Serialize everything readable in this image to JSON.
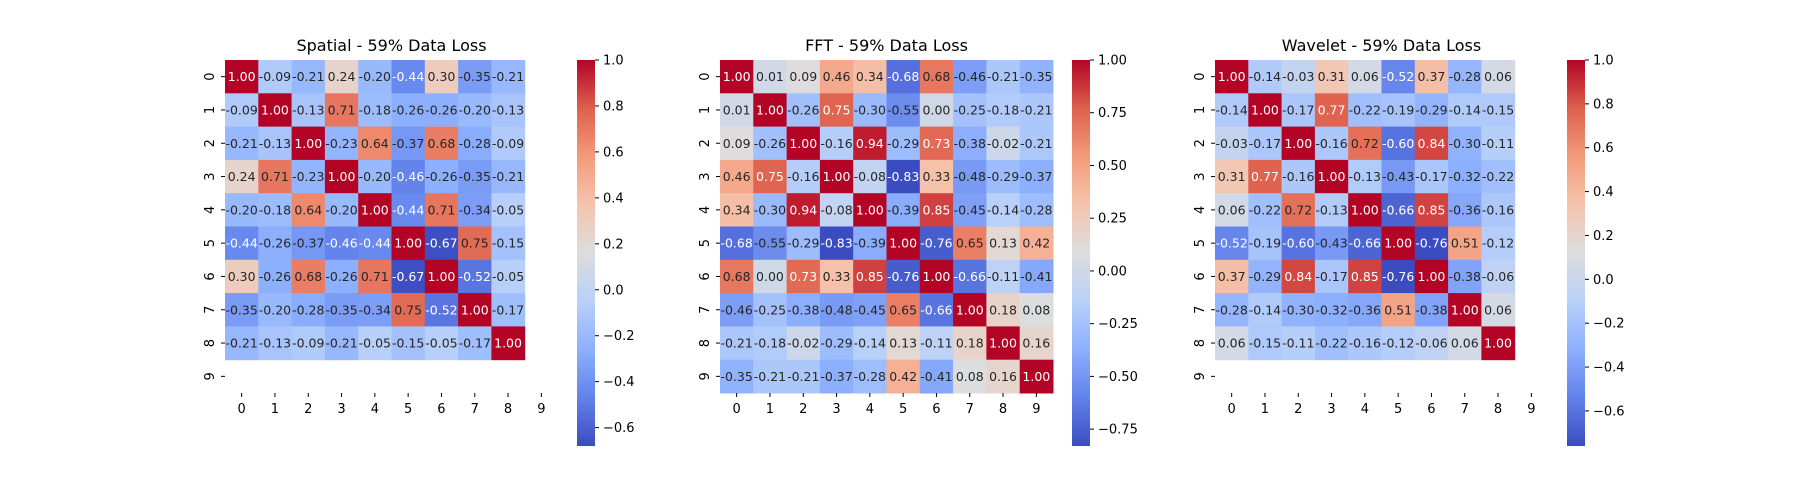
{
  "figure": {
    "background": "#ffffff",
    "colormap": "coolwarm"
  },
  "chart_data": [
    {
      "type": "heatmap",
      "title": "Spatial - 59% Data Loss",
      "x_tick_labels": [
        "0",
        "1",
        "2",
        "3",
        "4",
        "5",
        "6",
        "7",
        "8",
        "9"
      ],
      "y_tick_labels": [
        "0",
        "1",
        "2",
        "3",
        "4",
        "5",
        "6",
        "7",
        "8",
        "9"
      ],
      "vmin": -0.68,
      "vmax": 1.0,
      "colorbar_ticks": [
        1.0,
        0.8,
        0.6,
        0.4,
        0.2,
        0.0,
        -0.2,
        -0.4,
        -0.6
      ],
      "colorbar_tick_labels": [
        "1.0",
        "0.8",
        "0.6",
        "0.4",
        "0.2",
        "0.0",
        "−0.2",
        "−0.4",
        "−0.6"
      ],
      "values": [
        [
          1.0,
          -0.09,
          -0.21,
          0.24,
          -0.2,
          -0.44,
          0.3,
          -0.35,
          -0.21,
          null
        ],
        [
          -0.09,
          1.0,
          -0.13,
          0.71,
          -0.18,
          -0.26,
          -0.26,
          -0.2,
          -0.13,
          null
        ],
        [
          -0.21,
          -0.13,
          1.0,
          -0.23,
          0.64,
          -0.37,
          0.68,
          -0.28,
          -0.09,
          null
        ],
        [
          0.24,
          0.71,
          -0.23,
          1.0,
          -0.2,
          -0.46,
          -0.26,
          -0.35,
          -0.21,
          null
        ],
        [
          -0.2,
          -0.18,
          0.64,
          -0.2,
          1.0,
          -0.44,
          0.71,
          -0.34,
          -0.05,
          null
        ],
        [
          -0.44,
          -0.26,
          -0.37,
          -0.46,
          -0.44,
          1.0,
          -0.67,
          0.75,
          -0.15,
          null
        ],
        [
          0.3,
          -0.26,
          0.68,
          -0.26,
          0.71,
          -0.67,
          1.0,
          -0.52,
          -0.05,
          null
        ],
        [
          -0.35,
          -0.2,
          -0.28,
          -0.35,
          -0.34,
          0.75,
          -0.52,
          1.0,
          -0.17,
          null
        ],
        [
          -0.21,
          -0.13,
          -0.09,
          -0.21,
          -0.05,
          -0.15,
          -0.05,
          -0.17,
          1.0,
          null
        ],
        [
          null,
          null,
          null,
          null,
          null,
          null,
          null,
          null,
          null,
          null
        ]
      ]
    },
    {
      "type": "heatmap",
      "title": "FFT - 59% Data Loss",
      "x_tick_labels": [
        "0",
        "1",
        "2",
        "3",
        "4",
        "5",
        "6",
        "7",
        "8",
        "9"
      ],
      "y_tick_labels": [
        "0",
        "1",
        "2",
        "3",
        "4",
        "5",
        "6",
        "7",
        "8",
        "9"
      ],
      "vmin": -0.83,
      "vmax": 1.0,
      "colorbar_ticks": [
        1.0,
        0.75,
        0.5,
        0.25,
        0.0,
        -0.25,
        -0.5,
        -0.75
      ],
      "colorbar_tick_labels": [
        "1.00",
        "0.75",
        "0.50",
        "0.25",
        "0.00",
        "−0.25",
        "−0.50",
        "−0.75"
      ],
      "values": [
        [
          1.0,
          0.01,
          0.09,
          0.46,
          0.34,
          -0.68,
          0.68,
          -0.46,
          -0.21,
          -0.35
        ],
        [
          0.01,
          1.0,
          -0.26,
          0.75,
          -0.3,
          -0.55,
          -0.0,
          -0.25,
          -0.18,
          -0.21
        ],
        [
          0.09,
          -0.26,
          1.0,
          -0.16,
          0.94,
          -0.29,
          0.73,
          -0.38,
          -0.02,
          -0.21
        ],
        [
          0.46,
          0.75,
          -0.16,
          1.0,
          -0.08,
          -0.83,
          0.33,
          -0.48,
          -0.29,
          -0.37
        ],
        [
          0.34,
          -0.3,
          0.94,
          -0.08,
          1.0,
          -0.39,
          0.85,
          -0.45,
          -0.14,
          -0.28
        ],
        [
          -0.68,
          -0.55,
          -0.29,
          -0.83,
          -0.39,
          1.0,
          -0.76,
          0.65,
          0.13,
          0.42
        ],
        [
          0.68,
          -0.0,
          0.73,
          0.33,
          0.85,
          -0.76,
          1.0,
          -0.66,
          -0.11,
          -0.41
        ],
        [
          -0.46,
          -0.25,
          -0.38,
          -0.48,
          -0.45,
          0.65,
          -0.66,
          1.0,
          0.18,
          0.08
        ],
        [
          -0.21,
          -0.18,
          -0.02,
          -0.29,
          -0.14,
          0.13,
          -0.11,
          0.18,
          1.0,
          0.16
        ],
        [
          -0.35,
          -0.21,
          -0.21,
          -0.37,
          -0.28,
          0.42,
          -0.41,
          0.08,
          0.16,
          1.0
        ]
      ]
    },
    {
      "type": "heatmap",
      "title": "Wavelet - 59% Data Loss",
      "x_tick_labels": [
        "0",
        "1",
        "2",
        "3",
        "4",
        "5",
        "6",
        "7",
        "8",
        "9"
      ],
      "y_tick_labels": [
        "0",
        "1",
        "2",
        "3",
        "4",
        "5",
        "6",
        "7",
        "8",
        "9"
      ],
      "vmin": -0.76,
      "vmax": 1.0,
      "colorbar_ticks": [
        1.0,
        0.8,
        0.6,
        0.4,
        0.2,
        0.0,
        -0.2,
        -0.4,
        -0.6
      ],
      "colorbar_tick_labels": [
        "1.0",
        "0.8",
        "0.6",
        "0.4",
        "0.2",
        "0.0",
        "−0.2",
        "−0.4",
        "−0.6"
      ],
      "values": [
        [
          1.0,
          -0.14,
          -0.03,
          0.31,
          0.06,
          -0.52,
          0.37,
          -0.28,
          0.06,
          null
        ],
        [
          -0.14,
          1.0,
          -0.17,
          0.77,
          -0.22,
          -0.19,
          -0.29,
          -0.14,
          -0.15,
          null
        ],
        [
          -0.03,
          -0.17,
          1.0,
          -0.16,
          0.72,
          -0.6,
          0.84,
          -0.3,
          -0.11,
          null
        ],
        [
          0.31,
          0.77,
          -0.16,
          1.0,
          -0.13,
          -0.43,
          -0.17,
          -0.32,
          -0.22,
          null
        ],
        [
          0.06,
          -0.22,
          0.72,
          -0.13,
          1.0,
          -0.66,
          0.85,
          -0.36,
          -0.16,
          null
        ],
        [
          -0.52,
          -0.19,
          -0.6,
          -0.43,
          -0.66,
          1.0,
          -0.76,
          0.51,
          -0.12,
          null
        ],
        [
          0.37,
          -0.29,
          0.84,
          -0.17,
          0.85,
          -0.76,
          1.0,
          -0.38,
          -0.06,
          null
        ],
        [
          -0.28,
          -0.14,
          -0.3,
          -0.32,
          -0.36,
          0.51,
          -0.38,
          1.0,
          0.06,
          null
        ],
        [
          0.06,
          -0.15,
          -0.11,
          -0.22,
          -0.16,
          -0.12,
          -0.06,
          0.06,
          1.0,
          null
        ],
        [
          null,
          null,
          null,
          null,
          null,
          null,
          null,
          null,
          null,
          null
        ]
      ]
    }
  ]
}
